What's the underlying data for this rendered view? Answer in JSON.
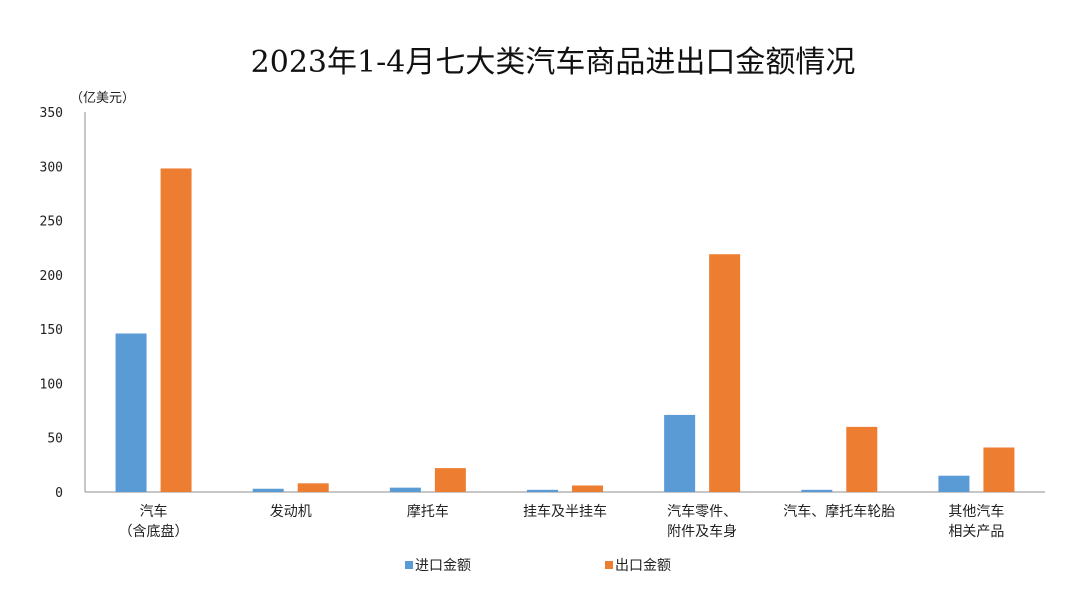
{
  "chart_data": {
    "type": "bar",
    "title": "2023年1-4月七大类汽车商品进出口金额情况",
    "ylabel": "（亿美元）",
    "xlabel": "",
    "ylim": [
      0,
      350
    ],
    "yticks": [
      0,
      50,
      100,
      150,
      200,
      250,
      300,
      350
    ],
    "grid": false,
    "legend_position": "bottom",
    "categories": [
      [
        "汽车",
        "（含底盘）"
      ],
      [
        "发动机"
      ],
      [
        "摩托车"
      ],
      [
        "挂车及半挂车"
      ],
      [
        "汽车零件、",
        "附件及车身"
      ],
      [
        "汽车、摩托车轮胎"
      ],
      [
        "其他汽车",
        "相关产品"
      ]
    ],
    "series": [
      {
        "name": "进口金额",
        "color": "#5b9bd5",
        "values": [
          146,
          3,
          4,
          2,
          71,
          2,
          15
        ]
      },
      {
        "name": "出口金额",
        "color": "#ed7d31",
        "values": [
          298,
          8,
          22,
          6,
          219,
          60,
          41
        ]
      }
    ]
  }
}
